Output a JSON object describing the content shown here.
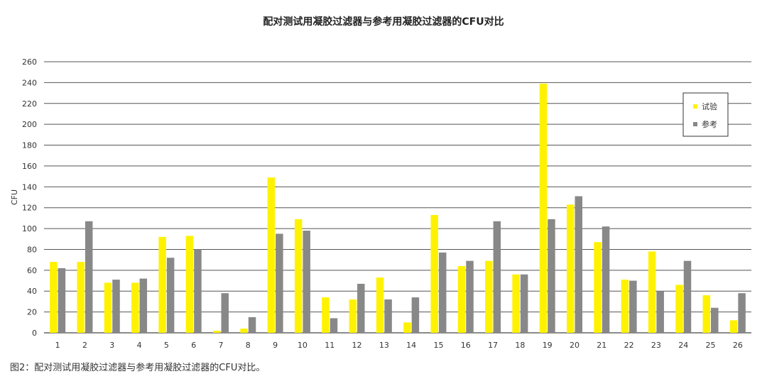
{
  "chart_data": {
    "type": "bar",
    "title": "配对测试用凝胶过滤器与参考用凝胶过滤器的CFU对比",
    "ylabel": "CFU",
    "xlabel": "",
    "ylim": [
      0,
      260
    ],
    "yticks": [
      0,
      20,
      40,
      60,
      80,
      100,
      120,
      140,
      160,
      180,
      200,
      220,
      240,
      260
    ],
    "categories": [
      "1",
      "2",
      "3",
      "4",
      "5",
      "6",
      "7",
      "8",
      "9",
      "10",
      "11",
      "12",
      "13",
      "14",
      "15",
      "16",
      "17",
      "18",
      "19",
      "20",
      "21",
      "22",
      "23",
      "24",
      "25",
      "26"
    ],
    "series": [
      {
        "name": "试验",
        "color": "#FFF200",
        "values": [
          68,
          68,
          48,
          48,
          92,
          93,
          2,
          4,
          149,
          109,
          34,
          32,
          53,
          10,
          113,
          64,
          69,
          56,
          239,
          123,
          87,
          51,
          78,
          46,
          36,
          12
        ]
      },
      {
        "name": "参考",
        "color": "#888888",
        "values": [
          62,
          107,
          51,
          52,
          72,
          80,
          38,
          15,
          95,
          98,
          14,
          47,
          32,
          34,
          77,
          69,
          107,
          56,
          109,
          131,
          102,
          50,
          40,
          69,
          24,
          38
        ]
      }
    ],
    "grid": true,
    "legend_position": "top-right"
  },
  "caption": "图2：配对测试用凝胶过滤器与参考用凝胶过滤器的CFU对比。"
}
